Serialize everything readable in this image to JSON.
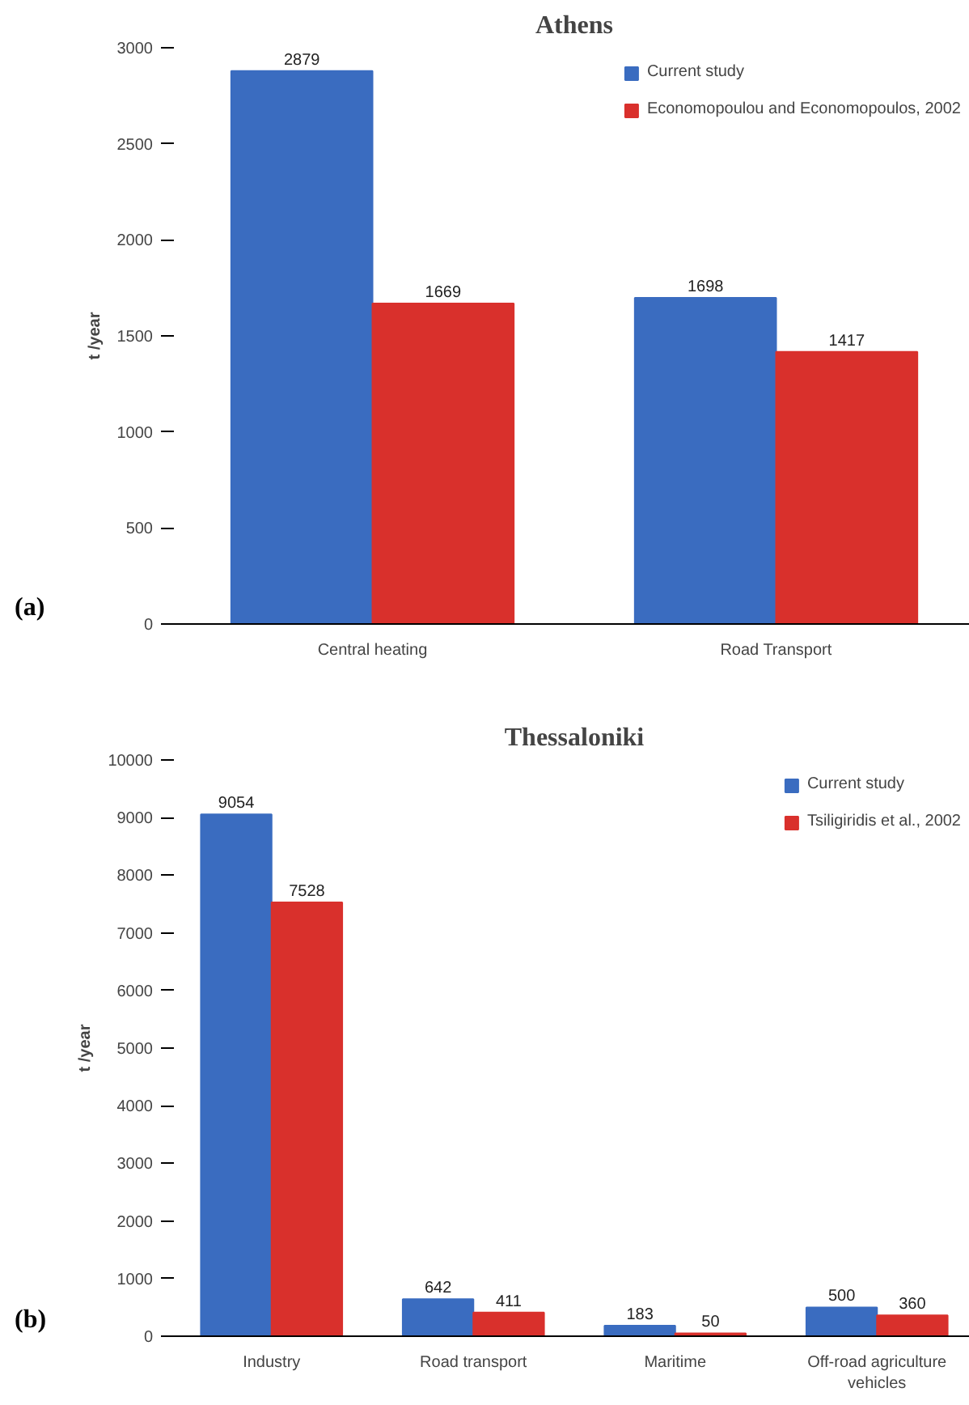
{
  "chart_data": [
    {
      "type": "bar",
      "title": "Athens",
      "ylabel": "t /year",
      "categories": [
        "Central heating",
        "Road Transport"
      ],
      "series": [
        {
          "name": "Current study",
          "color": "#3a6cc0",
          "values": [
            2879,
            1698
          ]
        },
        {
          "name": "Economopoulou and Economopoulos, 2002",
          "color": "#d9302c",
          "values": [
            1669,
            1417
          ]
        }
      ],
      "ylim": [
        0,
        3000
      ],
      "yticks": [
        0,
        500,
        1000,
        1500,
        2000,
        2500,
        3000
      ],
      "data_labels": true,
      "legend": "top right",
      "grid": false,
      "annotations": [
        "(a)"
      ]
    },
    {
      "type": "bar",
      "title": "Thessaloniki",
      "ylabel": "t /year",
      "categories": [
        "Industry",
        "Road transport",
        "Maritime",
        "Off-road agriculture vehicles"
      ],
      "series": [
        {
          "name": "Current study",
          "color": "#3a6cc0",
          "values": [
            9054,
            642,
            183,
            500
          ]
        },
        {
          "name": "Tsiligiridis et al., 2002",
          "color": "#d9302c",
          "values": [
            7528,
            411,
            50,
            360
          ]
        }
      ],
      "ylim": [
        0,
        10000
      ],
      "yticks": [
        0,
        1000,
        2000,
        3000,
        4000,
        5000,
        6000,
        7000,
        8000,
        9000,
        10000
      ],
      "data_labels": true,
      "legend": "top right",
      "grid": false,
      "annotations": [
        "(b)"
      ]
    }
  ]
}
